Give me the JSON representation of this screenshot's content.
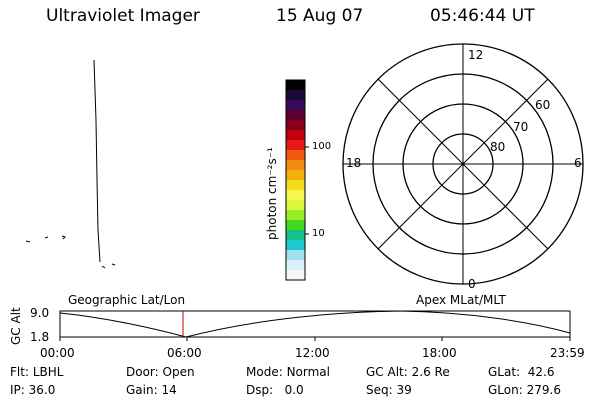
{
  "header": {
    "instrument": "Ultraviolet Imager",
    "date": "15 Aug 07",
    "time": "05:46:44 UT"
  },
  "colorbar": {
    "unit_label": "photon cm⁻²s⁻¹",
    "ticks": [
      "100",
      "10"
    ],
    "colors": [
      "#000000",
      "#1a0a38",
      "#3a0a5a",
      "#5a0030",
      "#8a0018",
      "#c00010",
      "#e81818",
      "#f05a10",
      "#f08c10",
      "#f4b010",
      "#f4dc18",
      "#f8f850",
      "#d8f838",
      "#98ec28",
      "#40d820",
      "#18c088",
      "#20c8d0",
      "#a0e0f0",
      "#d8f0f8",
      "#f4f8f8"
    ]
  },
  "polar_plot": {
    "mlt_labels": {
      "top": "12",
      "left": "18",
      "right": "6",
      "bottom": "0"
    },
    "lat_labels": [
      "60",
      "70",
      "80"
    ]
  },
  "altitude_panel": {
    "y_axis_label": "GC Alt",
    "y_ticks": [
      "9.0",
      "1.8"
    ],
    "left_title": "Geographic Lat/Lon",
    "right_title": "Apex MLat/MLT",
    "x_ticks": [
      "00:00",
      "06:00",
      "12:00",
      "18:00",
      "23:59"
    ],
    "current_time_marker": "05:46:44"
  },
  "status": {
    "flt": {
      "label": "Flt:",
      "value": "LBHL"
    },
    "ip": {
      "label": "IP:",
      "value": "36.0"
    },
    "door": {
      "label": "Door:",
      "value": "Open"
    },
    "gain": {
      "label": "Gain:",
      "value": "14"
    },
    "mode": {
      "label": "Mode:",
      "value": "Normal"
    },
    "dsp": {
      "label": "Dsp:",
      "value": "0.0"
    },
    "gc_alt": {
      "label": "GC Alt:",
      "value": "2.6 Re"
    },
    "seq": {
      "label": "Seq:",
      "value": "39"
    },
    "glat": {
      "label": "GLat:",
      "value": "42.6"
    },
    "glon": {
      "label": "GLon:",
      "value": "279.6"
    }
  }
}
